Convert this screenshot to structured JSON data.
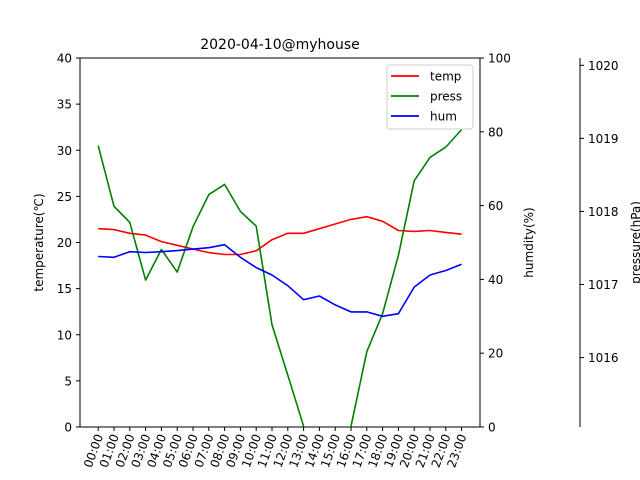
{
  "chart_data": {
    "type": "line",
    "title": "2020-04-10@myhouse",
    "x": [
      "00:00",
      "01:00",
      "02:00",
      "03:00",
      "04:00",
      "05:00",
      "06:00",
      "07:00",
      "08:00",
      "09:00",
      "10:00",
      "11:00",
      "12:00",
      "13:00",
      "14:00",
      "15:00",
      "16:00",
      "17:00",
      "18:00",
      "19:00",
      "20:00",
      "21:00",
      "22:00",
      "23:00"
    ],
    "axes": {
      "temperature": {
        "label": "temperature(℃)",
        "ylim": [
          0,
          40
        ],
        "ticks": [
          0,
          5,
          10,
          15,
          20,
          25,
          30,
          35,
          40
        ]
      },
      "humidity": {
        "label": "humdity(%)",
        "ylim": [
          0,
          100
        ],
        "ticks": [
          0,
          20,
          40,
          60,
          80,
          100
        ]
      },
      "pressure": {
        "label": "pressure(hPa)",
        "ylim": [
          1015.05,
          1020.1
        ],
        "ticks": [
          1016,
          1017,
          1018,
          1019,
          1020
        ]
      }
    },
    "series": [
      {
        "name": "temp",
        "axis": "temperature",
        "color": "#ff0000",
        "values": [
          21.5,
          21.4,
          21.0,
          20.8,
          20.1,
          19.7,
          19.3,
          18.9,
          18.7,
          18.7,
          19.1,
          20.3,
          21.0,
          21.0,
          21.5,
          22.0,
          22.5,
          22.8,
          22.3,
          21.3,
          21.2,
          21.3,
          21.1,
          20.9
        ]
      },
      {
        "name": "press",
        "axis": "pressure",
        "color": "#008000",
        "values": [
          1018.9,
          1018.07,
          1017.85,
          1017.06,
          1017.48,
          1017.17,
          1017.79,
          1018.23,
          1018.37,
          1018.0,
          1017.8,
          1016.45,
          1015.76,
          1015.06,
          1014.72,
          1014.55,
          1015.06,
          1016.08,
          1016.6,
          1017.4,
          1018.42,
          1018.74,
          1018.88,
          1019.12
        ]
      },
      {
        "name": "hum",
        "axis": "humidity",
        "color": "#0000ff",
        "values": [
          46.2,
          46.0,
          47.5,
          47.3,
          47.5,
          47.8,
          48.2,
          48.6,
          49.4,
          46.0,
          43.2,
          41.2,
          38.3,
          34.5,
          35.5,
          33.1,
          31.2,
          31.2,
          30.0,
          30.7,
          37.9,
          41.2,
          42.4,
          44.1
        ]
      }
    ],
    "legend": {
      "placement": "top-right",
      "entries": [
        "temp",
        "press",
        "hum"
      ]
    },
    "grid": false
  }
}
